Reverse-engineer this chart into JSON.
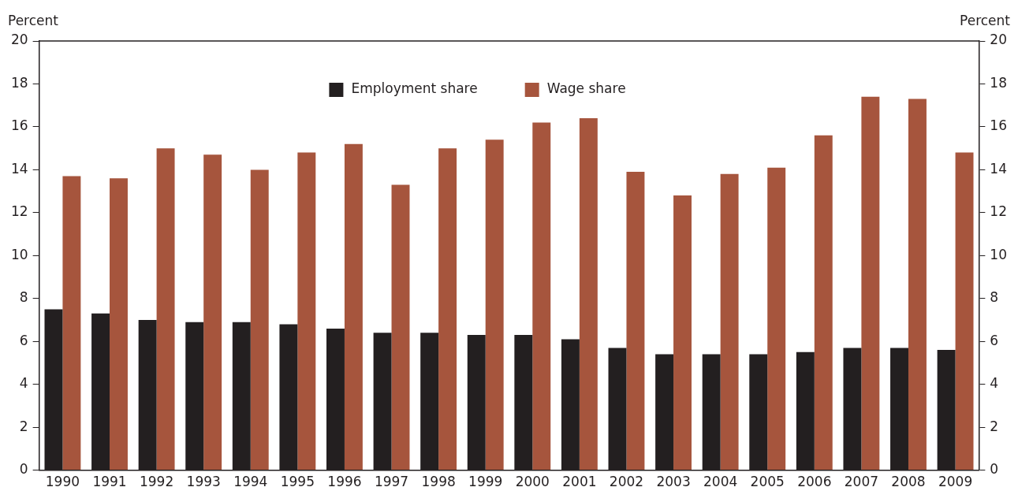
{
  "chart_data": {
    "type": "bar",
    "ylabel": "Percent",
    "y2label": "Percent",
    "categories": [
      "1990",
      "1991",
      "1992",
      "1993",
      "1994",
      "1995",
      "1996",
      "1997",
      "1998",
      "1999",
      "2000",
      "2001",
      "2002",
      "2003",
      "2004",
      "2005",
      "2006",
      "2007",
      "2008",
      "2009"
    ],
    "series": [
      {
        "name": "Employment share",
        "color": "#231f20",
        "values": [
          7.5,
          7.3,
          7.0,
          6.9,
          6.9,
          6.8,
          6.6,
          6.4,
          6.4,
          6.3,
          6.3,
          6.1,
          5.7,
          5.4,
          5.4,
          5.4,
          5.5,
          5.7,
          5.7,
          5.6
        ]
      },
      {
        "name": "Wage share",
        "color": "#a6553d",
        "values": [
          13.7,
          13.6,
          15.0,
          14.7,
          14.0,
          14.8,
          15.2,
          13.3,
          15.0,
          15.4,
          16.2,
          16.4,
          13.9,
          12.8,
          13.8,
          14.1,
          15.6,
          17.4,
          17.3,
          14.8
        ]
      }
    ],
    "ylim": [
      0,
      20
    ],
    "yticks": [
      0,
      2,
      4,
      6,
      8,
      10,
      12,
      14,
      16,
      18,
      20
    ],
    "y2lim": [
      0,
      20
    ],
    "y2ticks": [
      0,
      2,
      4,
      6,
      8,
      10,
      12,
      14,
      16,
      18,
      20
    ],
    "legend": "top",
    "grid": false
  }
}
